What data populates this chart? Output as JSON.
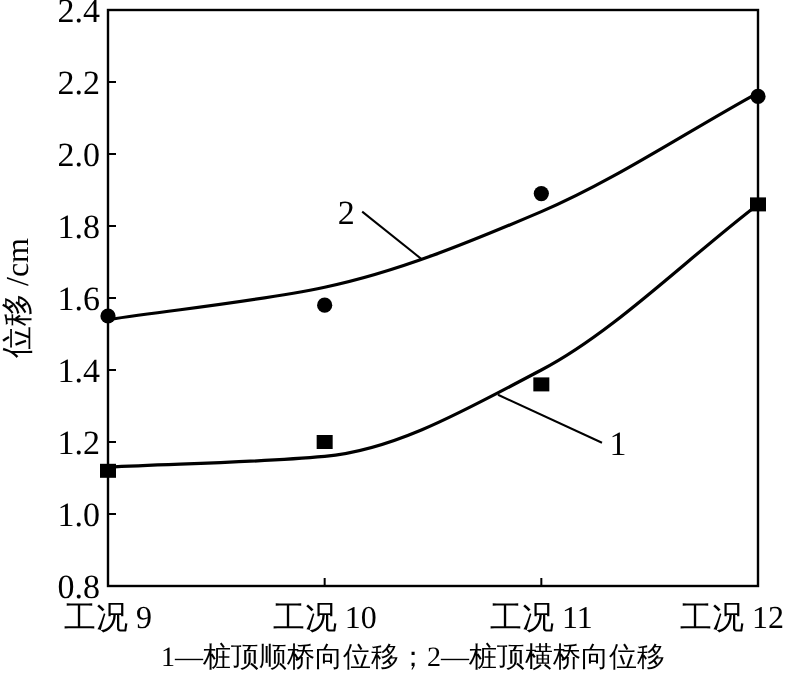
{
  "chart_data": {
    "type": "scatter",
    "ylabel": "位移 /cm",
    "categories": [
      "工况 9",
      "工况 10",
      "工况 11",
      "工况 12"
    ],
    "ylim": [
      0.8,
      2.4
    ],
    "yticks": [
      0.8,
      {
        "value": 1,
        "label": "1.0"
      },
      1.2,
      1.4,
      1.6,
      1.8,
      {
        "value": 2,
        "label": "2.0"
      },
      2.2,
      2.4
    ],
    "series": [
      {
        "marker": "square",
        "color": "#000000",
        "values": [
          1.12,
          1.2,
          1.36,
          1.86
        ]
      },
      {
        "marker": "circle",
        "color": "#000000",
        "values": [
          1.55,
          1.58,
          1.89,
          2.16
        ]
      },
      {
        "type": "line",
        "name": "1",
        "color": "#000000",
        "values": [
          1.13,
          1.16,
          1.4,
          1.86
        ]
      },
      {
        "type": "line",
        "name": "2",
        "color": "#000000",
        "values": [
          1.54,
          1.63,
          1.84,
          2.17
        ]
      }
    ],
    "annotations": [
      "1—桩顶顺桥向位移；2—桩顶横桥向位移"
    ],
    "grid": false
  }
}
